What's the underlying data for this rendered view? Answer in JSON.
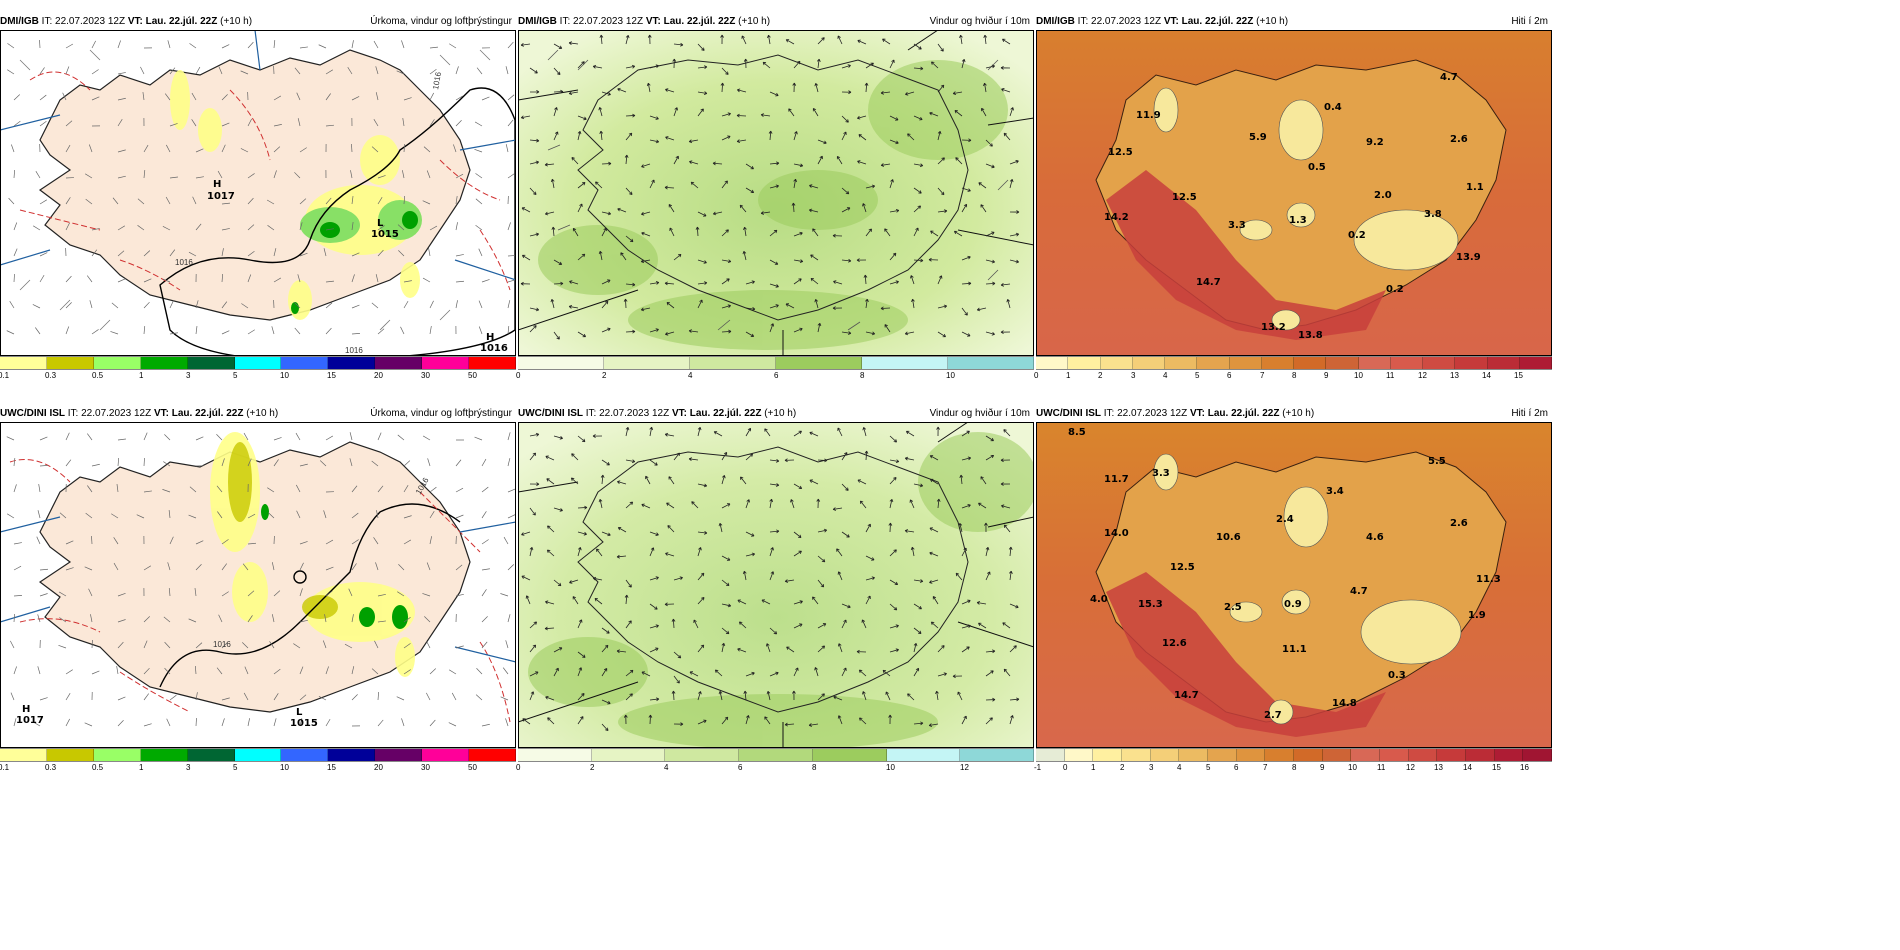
{
  "rows": [
    {
      "model": "DMI/IGB",
      "it": "IT: 22.07.2023 12Z",
      "vt": "VT: Lau. 22.júl. 22Z",
      "lead": "(+10 h)",
      "precip": {
        "title": "Úrkoma, vindur og loftþrýstingur",
        "scale": [
          "0.1",
          "0.3",
          "0.5",
          "1",
          "3",
          "5",
          "10",
          "15",
          "20",
          "30",
          "50"
        ],
        "highs": [
          {
            "letter": "H",
            "value": "1017"
          },
          {
            "letter": "H",
            "value": "1016"
          }
        ],
        "lows": [
          {
            "letter": "L",
            "value": "1015"
          }
        ],
        "isobars": [
          "1016",
          "1016",
          "1016"
        ]
      },
      "wind": {
        "title": "Vindur og hviður í 10m",
        "scale": [
          "0",
          "2",
          "4",
          "6",
          "8",
          "10"
        ]
      },
      "temp": {
        "title": "Hiti í 2m",
        "scale": [
          "0",
          "1",
          "2",
          "3",
          "4",
          "5",
          "6",
          "7",
          "8",
          "9",
          "10",
          "11",
          "12",
          "13",
          "14",
          "15"
        ],
        "labels": [
          "4.7",
          "11.9",
          "0.4",
          "12.5",
          "5.9",
          "9.2",
          "2.6",
          "0.5",
          "1.1",
          "12.5",
          "2.0",
          "14.2",
          "3.3",
          "1.3",
          "3.8",
          "0.2",
          "13.9",
          "14.7",
          "0.2",
          "13.2",
          "13.8"
        ]
      }
    },
    {
      "model": "UWC/DINI ISL",
      "it": "IT: 22.07.2023 12Z",
      "vt": "VT: Lau. 22.júl. 22Z",
      "lead": "(+10 h)",
      "precip": {
        "title": "Úrkoma, vindur og loftþrýstingur",
        "scale": [
          "0.1",
          "0.3",
          "0.5",
          "1",
          "3",
          "5",
          "10",
          "15",
          "20",
          "30",
          "50"
        ],
        "highs": [
          {
            "letter": "H",
            "value": "1017"
          }
        ],
        "lows": [
          {
            "letter": "L",
            "value": "1015"
          }
        ],
        "isobars": [
          "1016",
          "1016"
        ]
      },
      "wind": {
        "title": "Vindur og hviður í 10m",
        "scale": [
          "0",
          "2",
          "4",
          "6",
          "8",
          "10",
          "12"
        ]
      },
      "temp": {
        "title": "Hiti í 2m",
        "scale": [
          "-1",
          "0",
          "1",
          "2",
          "3",
          "4",
          "5",
          "6",
          "7",
          "8",
          "9",
          "10",
          "11",
          "12",
          "13",
          "14",
          "15",
          "16"
        ],
        "labels": [
          "8.5",
          "5.5",
          "11.7",
          "3.3",
          "3.4",
          "2.4",
          "2.6",
          "14.0",
          "10.6",
          "4.6",
          "12.5",
          "11.3",
          "4.0",
          "15.3",
          "2.5",
          "0.9",
          "4.7",
          "1.9",
          "12.6",
          "11.1",
          "0.3",
          "14.7",
          "2.7",
          "14.8"
        ]
      }
    }
  ],
  "colors": {
    "precip_scale": [
      "#ffff99",
      "#c8c800",
      "#99ff66",
      "#00aa00",
      "#006633",
      "#00ffff",
      "#3366ff",
      "#000099",
      "#660066",
      "#ff0099",
      "#ff0000"
    ],
    "wind_scale": [
      "#f6fbe6",
      "#e6f4c4",
      "#cfe8a0",
      "#b2d97c",
      "#9ccc5e",
      "#c4f5f5",
      "#8ed8d8"
    ],
    "temp_scale": [
      "#fff8c8",
      "#fff0a0",
      "#fae18e",
      "#f4cf78",
      "#ecbb62",
      "#e4a44e",
      "#df943e",
      "#d87f2e",
      "#d26a28",
      "#ce6436",
      "#d86856",
      "#d85a4c",
      "#cf4b42",
      "#c63a3a",
      "#bb2c36",
      "#ae1c34",
      "#a01532"
    ],
    "land_precip": "#fbe8d8",
    "ocean_precip": "#ffffff"
  }
}
